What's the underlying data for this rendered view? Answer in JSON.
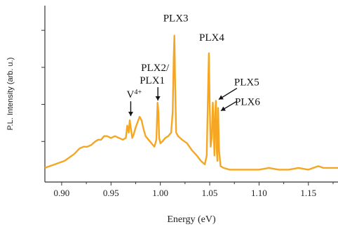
{
  "chart_data": {
    "type": "line",
    "title": "",
    "xlabel": "Energy (eV)",
    "ylabel": "P.L. Intensity (arb. u.)",
    "xlim": [
      0.883,
      1.18
    ],
    "ylim": [
      0,
      1.0
    ],
    "grid": false,
    "xticks": [
      0.9,
      0.95,
      1.0,
      1.05,
      1.1,
      1.15
    ],
    "xtick_labels": [
      "0.90",
      "0.95",
      "1.00",
      "1.05",
      "1.10",
      "1.15"
    ],
    "yticks": [
      0.23,
      0.44,
      0.65,
      0.86
    ],
    "color": "#F5A623",
    "series": [
      {
        "x": [
          0.883,
          0.888,
          0.893,
          0.898,
          0.903,
          0.908,
          0.913,
          0.918,
          0.922,
          0.926,
          0.93,
          0.934,
          0.937,
          0.94,
          0.943,
          0.946,
          0.95,
          0.954,
          0.958,
          0.962,
          0.965,
          0.9665,
          0.968,
          0.969,
          0.97,
          0.9715,
          0.973,
          0.975,
          0.977,
          0.979,
          0.981,
          0.983,
          0.985,
          0.988,
          0.991,
          0.994,
          0.996,
          0.9972,
          0.998,
          0.9988,
          1.0,
          1.002,
          1.005,
          1.008,
          1.011,
          1.0125,
          1.0135,
          1.0142,
          1.015,
          1.016,
          1.018,
          1.022,
          1.027,
          1.032,
          1.037,
          1.041,
          1.045,
          1.047,
          1.0485,
          1.0492,
          1.05,
          1.051,
          1.052,
          1.0532,
          1.054,
          1.0548,
          1.0555,
          1.0563,
          1.057,
          1.0578,
          1.0585,
          1.0595,
          1.061,
          1.064,
          1.07,
          1.08,
          1.09,
          1.1,
          1.11,
          1.12,
          1.13,
          1.14,
          1.15,
          1.155,
          1.16,
          1.165,
          1.17,
          1.18
        ],
        "y": [
          0.08,
          0.09,
          0.1,
          0.11,
          0.12,
          0.14,
          0.16,
          0.19,
          0.2,
          0.2,
          0.21,
          0.23,
          0.24,
          0.24,
          0.26,
          0.26,
          0.25,
          0.26,
          0.25,
          0.24,
          0.25,
          0.32,
          0.28,
          0.35,
          0.31,
          0.25,
          0.27,
          0.31,
          0.34,
          0.37,
          0.35,
          0.3,
          0.26,
          0.24,
          0.22,
          0.2,
          0.24,
          0.45,
          0.4,
          0.25,
          0.22,
          0.23,
          0.25,
          0.26,
          0.28,
          0.4,
          0.7,
          0.83,
          0.55,
          0.28,
          0.26,
          0.24,
          0.22,
          0.18,
          0.15,
          0.12,
          0.1,
          0.15,
          0.55,
          0.73,
          0.45,
          0.2,
          0.25,
          0.45,
          0.3,
          0.15,
          0.38,
          0.46,
          0.2,
          0.12,
          0.42,
          0.18,
          0.09,
          0.08,
          0.07,
          0.07,
          0.07,
          0.07,
          0.08,
          0.07,
          0.07,
          0.08,
          0.07,
          0.08,
          0.09,
          0.08,
          0.08,
          0.08
        ]
      }
    ],
    "annotations": [
      {
        "id": "v4",
        "text": "V",
        "sup": "4+",
        "x": 0.97,
        "peak_y": 0.35
      },
      {
        "id": "plx2",
        "text": "PLX2/",
        "line2": "PLX1",
        "x": 0.9975,
        "peak_y": 0.45
      },
      {
        "id": "plx3",
        "text": "PLX3",
        "x": 1.0142,
        "peak_y": 0.83
      },
      {
        "id": "plx4",
        "text": "PLX4",
        "x": 1.0492,
        "peak_y": 0.73
      },
      {
        "id": "plx5",
        "text": "PLX5",
        "x": 1.0563,
        "peak_y": 0.46
      },
      {
        "id": "plx6",
        "text": "PLX6",
        "x": 1.0585,
        "peak_y": 0.42
      }
    ]
  }
}
